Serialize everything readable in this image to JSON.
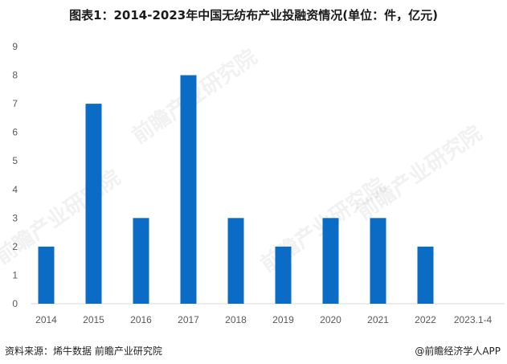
{
  "title": "图表1：2014-2023年中国无纺布产业投融资情况(单位：件，亿元)",
  "watermark": "前瞻产业研究院",
  "footer": {
    "source": "资料来源：烯牛数据 前瞻产业研究院",
    "brand": "@前瞻经济学人APP"
  },
  "colors": {
    "bar": "#0a6cc4",
    "grid": "#d9d9d9",
    "axis_text": "#595959"
  },
  "chart_data": {
    "type": "bar",
    "categories": [
      "2014",
      "2015",
      "2016",
      "2017",
      "2018",
      "2019",
      "2020",
      "2021",
      "2022",
      "2023.1-4"
    ],
    "values": [
      2,
      7,
      3,
      8,
      3,
      2,
      3,
      3,
      2,
      0
    ],
    "ylim": [
      0,
      9
    ],
    "yticks": [
      0,
      1,
      2,
      3,
      4,
      5,
      6,
      7,
      8,
      9
    ],
    "grid": false,
    "legend": "none"
  }
}
